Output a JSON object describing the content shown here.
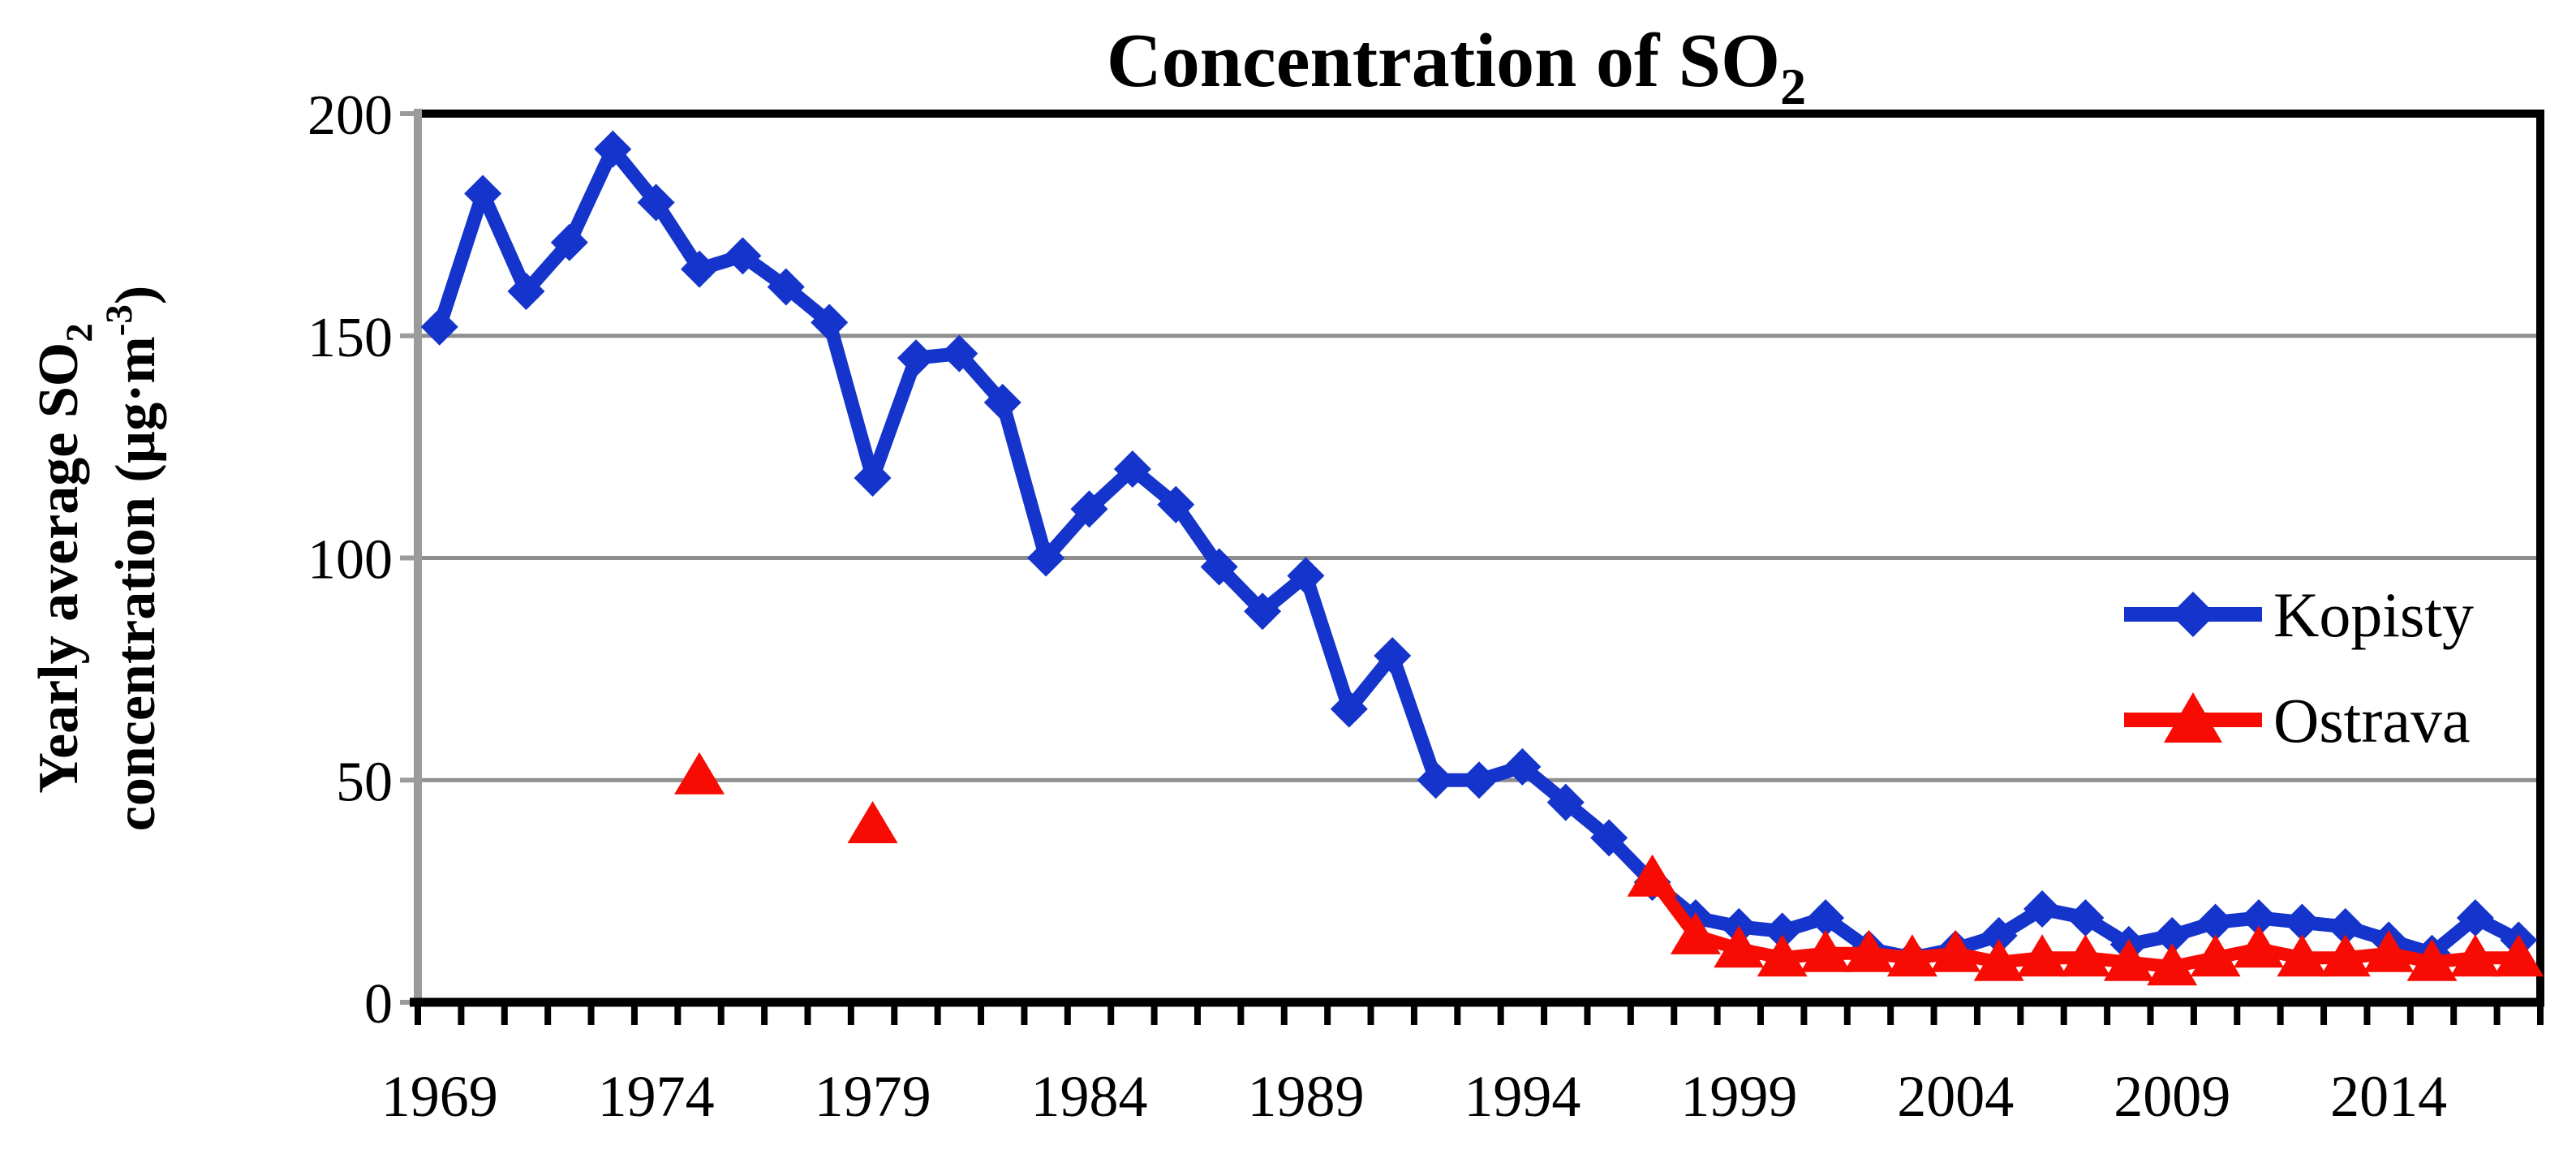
{
  "chart_data": {
    "type": "line",
    "title": {
      "prefix": "Concentration of SO",
      "subscript": "2"
    },
    "y_axis_title": {
      "line1_prefix": "Yearly average SO",
      "line1_sub": "2",
      "line2_prefix": "concentration (µg·m",
      "line2_sup": "-3",
      "line2_suffix": ")"
    },
    "xlabel": "",
    "ylabel": "Yearly average SO2 concentration (ug.m-3)",
    "ylim": [
      0,
      200
    ],
    "y_ticks": [
      0,
      50,
      100,
      150,
      200
    ],
    "x_tick_labels": [
      "1969",
      "1974",
      "1979",
      "1984",
      "1989",
      "1994",
      "1999",
      "2004",
      "2009",
      "2014"
    ],
    "x_range_years": [
      1969,
      2017
    ],
    "grid": "horizontal",
    "legend_position": "inside-right-middle",
    "series": [
      {
        "name": "Kopisty",
        "marker": "diamond",
        "color": "#1434CB",
        "start_year": 1969,
        "values": [
          152,
          182,
          160,
          171,
          192,
          180,
          165,
          168,
          161,
          153,
          118,
          145,
          146,
          135,
          100,
          111,
          120,
          112,
          98,
          88,
          96,
          66,
          78,
          50,
          50,
          53,
          45,
          37,
          27,
          19,
          17,
          16,
          19,
          12,
          10,
          12,
          15,
          21,
          19,
          13,
          15,
          18,
          19,
          18,
          17,
          14,
          11,
          19,
          14
        ]
      },
      {
        "name": "Ostrava",
        "marker": "triangle",
        "color": "#F80B02",
        "points": [
          [
            1975,
            51
          ],
          [
            1979,
            40
          ],
          [
            1997,
            28
          ],
          [
            1998,
            15
          ],
          [
            1999,
            12
          ],
          [
            2000,
            10
          ],
          [
            2001,
            11
          ],
          [
            2002,
            11
          ],
          [
            2003,
            10
          ],
          [
            2004,
            11
          ],
          [
            2005,
            9
          ],
          [
            2006,
            10
          ],
          [
            2007,
            10
          ],
          [
            2008,
            9
          ],
          [
            2009,
            8
          ],
          [
            2010,
            10
          ],
          [
            2011,
            12
          ],
          [
            2012,
            10
          ],
          [
            2013,
            10
          ],
          [
            2014,
            11
          ],
          [
            2015,
            9
          ],
          [
            2016,
            10
          ],
          [
            2017,
            10
          ]
        ]
      }
    ],
    "colors": {
      "frame": "#000000",
      "y_axis_line": "#9B9B9B",
      "gridline": "#8E8E8E",
      "background": "#FFFFFF",
      "text": "#000000"
    }
  }
}
